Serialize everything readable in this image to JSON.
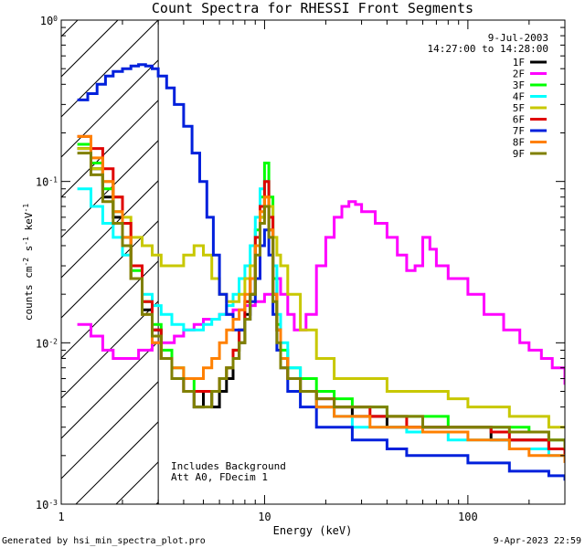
{
  "chart_data": {
    "type": "line",
    "title": "Count Spectra for RHESSI Front Segments",
    "xlabel": "Energy (keV)",
    "ylabel": "counts cm",
    "ylabel_sup1": "-2",
    "ylabel_mid": " s",
    "ylabel_sup2": "-1",
    "ylabel_end": " keV",
    "ylabel_sup3": "-1",
    "x_scale": "log",
    "y_scale": "log",
    "xlim": [
      1.0,
      300
    ],
    "ylim": [
      0.001,
      1.0
    ],
    "x_ticks": [
      {
        "v": 1,
        "label": "1"
      },
      {
        "v": 10,
        "label": "10"
      },
      {
        "v": 100,
        "label": "100"
      }
    ],
    "y_ticks": [
      {
        "v": 1,
        "base": "10",
        "exp": "0"
      },
      {
        "v": 0.1,
        "base": "10",
        "exp": "-1"
      },
      {
        "v": 0.01,
        "base": "10",
        "exp": "-2"
      },
      {
        "v": 0.001,
        "base": "10",
        "exp": "-3"
      }
    ],
    "hatch_xmax": 3.0,
    "legend_position": "top-right",
    "date_line": "9-Jul-2003",
    "time_line": "14:27:00 to 14:28:00",
    "notes": [
      "Includes Background",
      "Att A0, FDecim 1"
    ],
    "footer_left": "Generated by hsi_min_spectra_plot.pro",
    "footer_right": "9-Apr-2023 22:59",
    "series": [
      {
        "name": "1F",
        "color": "#000000",
        "x": [
          1.2,
          1.4,
          1.6,
          1.8,
          2.0,
          2.2,
          2.5,
          2.8,
          3.1,
          3.5,
          4.0,
          4.5,
          5.0,
          5.5,
          6.0,
          6.5,
          7.0,
          7.5,
          8.0,
          8.5,
          9.0,
          9.5,
          10.0,
          10.5,
          11.0,
          11.5,
          12.0,
          13,
          15,
          18,
          22,
          27,
          33,
          40,
          50,
          60,
          80,
          100,
          130,
          160,
          200,
          250,
          300
        ],
        "y": [
          0.16,
          0.12,
          0.08,
          0.06,
          0.04,
          0.025,
          0.016,
          0.012,
          0.008,
          0.006,
          0.005,
          0.004,
          0.005,
          0.004,
          0.005,
          0.006,
          0.008,
          0.01,
          0.015,
          0.02,
          0.04,
          0.06,
          0.07,
          0.05,
          0.02,
          0.012,
          0.008,
          0.006,
          0.005,
          0.004,
          0.004,
          0.0035,
          0.0035,
          0.003,
          0.003,
          0.003,
          0.003,
          0.003,
          0.0025,
          0.0025,
          0.0025,
          0.0022,
          0.002
        ]
      },
      {
        "name": "2F",
        "color": "#ff00ff",
        "x": [
          1.2,
          1.4,
          1.6,
          1.8,
          2.0,
          2.4,
          2.8,
          3.2,
          3.6,
          4.0,
          4.5,
          5.0,
          5.5,
          6.0,
          7.0,
          8.0,
          9.0,
          10.0,
          11.0,
          12.0,
          13.0,
          14.0,
          15.0,
          16.0,
          18.0,
          20.0,
          22.0,
          24.0,
          26.0,
          28.0,
          30.0,
          35.0,
          40.0,
          45.0,
          50.0,
          55.0,
          60.0,
          65.0,
          70.0,
          80.0,
          100.0,
          120.0,
          150.0,
          180.0,
          200.0,
          230.0,
          260.0,
          300.0
        ],
        "y": [
          0.013,
          0.011,
          0.009,
          0.008,
          0.008,
          0.009,
          0.01,
          0.01,
          0.011,
          0.012,
          0.013,
          0.014,
          0.014,
          0.015,
          0.016,
          0.017,
          0.018,
          0.02,
          0.025,
          0.02,
          0.015,
          0.012,
          0.012,
          0.015,
          0.03,
          0.045,
          0.06,
          0.07,
          0.075,
          0.072,
          0.065,
          0.055,
          0.045,
          0.035,
          0.028,
          0.03,
          0.045,
          0.038,
          0.03,
          0.025,
          0.02,
          0.015,
          0.012,
          0.01,
          0.009,
          0.008,
          0.007,
          0.0055
        ]
      },
      {
        "name": "3F",
        "color": "#00ff00",
        "x": [
          1.2,
          1.4,
          1.6,
          1.8,
          2.0,
          2.2,
          2.5,
          2.8,
          3.1,
          3.5,
          4.0,
          4.5,
          5.0,
          5.5,
          6.0,
          6.5,
          7.0,
          7.5,
          8.0,
          8.5,
          9.0,
          9.5,
          10.0,
          10.5,
          11.0,
          11.5,
          12.0,
          13,
          15,
          18,
          22,
          27,
          33,
          40,
          50,
          60,
          80,
          100,
          130,
          160,
          200,
          250,
          300
        ],
        "y": [
          0.17,
          0.13,
          0.09,
          0.065,
          0.045,
          0.028,
          0.018,
          0.013,
          0.009,
          0.007,
          0.006,
          0.005,
          0.005,
          0.005,
          0.006,
          0.007,
          0.009,
          0.012,
          0.018,
          0.025,
          0.05,
          0.08,
          0.13,
          0.08,
          0.025,
          0.013,
          0.009,
          0.007,
          0.006,
          0.005,
          0.0045,
          0.004,
          0.004,
          0.0035,
          0.0035,
          0.0035,
          0.003,
          0.003,
          0.003,
          0.003,
          0.0028,
          0.0025,
          0.0022
        ]
      },
      {
        "name": "4F",
        "color": "#00ffff",
        "x": [
          1.2,
          1.4,
          1.6,
          1.8,
          2.0,
          2.2,
          2.5,
          2.8,
          3.1,
          3.5,
          4.0,
          4.5,
          5.0,
          5.5,
          6.0,
          6.5,
          7.0,
          7.5,
          8.0,
          8.5,
          9.0,
          9.5,
          10.0,
          10.5,
          11.0,
          11.5,
          12.0,
          13,
          15,
          18,
          22,
          27,
          33,
          40,
          50,
          60,
          80,
          100,
          130,
          160,
          200,
          250,
          300
        ],
        "y": [
          0.09,
          0.07,
          0.055,
          0.045,
          0.035,
          0.025,
          0.02,
          0.017,
          0.015,
          0.013,
          0.012,
          0.012,
          0.013,
          0.014,
          0.015,
          0.017,
          0.02,
          0.025,
          0.03,
          0.04,
          0.06,
          0.09,
          0.1,
          0.07,
          0.03,
          0.015,
          0.01,
          0.007,
          0.005,
          0.004,
          0.0035,
          0.003,
          0.003,
          0.003,
          0.0028,
          0.0028,
          0.0025,
          0.0025,
          0.0025,
          0.0022,
          0.0022,
          0.002,
          0.002
        ]
      },
      {
        "name": "5F",
        "color": "#c8c800",
        "x": [
          1.2,
          1.4,
          1.6,
          1.8,
          2.0,
          2.2,
          2.5,
          2.8,
          3.1,
          3.5,
          4.0,
          4.5,
          5.0,
          5.5,
          6.0,
          6.5,
          7.0,
          7.5,
          8.0,
          8.5,
          9.0,
          9.5,
          10.0,
          10.5,
          11.0,
          11.5,
          12.0,
          13,
          15,
          18,
          22,
          27,
          33,
          40,
          50,
          60,
          80,
          100,
          130,
          160,
          200,
          250,
          300
        ],
        "y": [
          0.16,
          0.12,
          0.1,
          0.08,
          0.06,
          0.045,
          0.04,
          0.035,
          0.03,
          0.03,
          0.035,
          0.04,
          0.035,
          0.025,
          0.02,
          0.018,
          0.018,
          0.02,
          0.025,
          0.03,
          0.04,
          0.06,
          0.08,
          0.07,
          0.045,
          0.035,
          0.03,
          0.02,
          0.012,
          0.008,
          0.006,
          0.006,
          0.006,
          0.005,
          0.005,
          0.005,
          0.0045,
          0.004,
          0.004,
          0.0035,
          0.0035,
          0.003,
          0.003
        ]
      },
      {
        "name": "6F",
        "color": "#e00000",
        "x": [
          1.2,
          1.4,
          1.6,
          1.8,
          2.0,
          2.2,
          2.5,
          2.8,
          3.1,
          3.5,
          4.0,
          4.5,
          5.0,
          5.5,
          6.0,
          6.5,
          7.0,
          7.5,
          8.0,
          8.5,
          9.0,
          9.5,
          10.0,
          10.5,
          11.0,
          11.5,
          12.0,
          13,
          15,
          18,
          22,
          27,
          33,
          40,
          50,
          60,
          80,
          100,
          130,
          160,
          200,
          250,
          300
        ],
        "y": [
          0.19,
          0.16,
          0.12,
          0.08,
          0.055,
          0.03,
          0.018,
          0.012,
          0.008,
          0.006,
          0.005,
          0.005,
          0.005,
          0.005,
          0.006,
          0.007,
          0.009,
          0.012,
          0.018,
          0.025,
          0.045,
          0.07,
          0.1,
          0.06,
          0.02,
          0.012,
          0.008,
          0.006,
          0.005,
          0.0045,
          0.004,
          0.004,
          0.0035,
          0.0035,
          0.003,
          0.003,
          0.003,
          0.003,
          0.0028,
          0.0025,
          0.0025,
          0.0022,
          0.002
        ]
      },
      {
        "name": "7F",
        "color": "#0020dc",
        "x": [
          1.2,
          1.35,
          1.5,
          1.65,
          1.8,
          2.0,
          2.2,
          2.4,
          2.6,
          2.8,
          3.0,
          3.3,
          3.6,
          4.0,
          4.4,
          4.8,
          5.2,
          5.6,
          6.0,
          6.5,
          7.0,
          7.5,
          8.0,
          8.5,
          9.0,
          9.5,
          10.0,
          10.5,
          11.0,
          11.5,
          12.0,
          13,
          15,
          18,
          22,
          27,
          33,
          40,
          50,
          60,
          80,
          100,
          130,
          160,
          200,
          250,
          300
        ],
        "y": [
          0.32,
          0.35,
          0.4,
          0.45,
          0.48,
          0.5,
          0.52,
          0.53,
          0.52,
          0.5,
          0.45,
          0.38,
          0.3,
          0.22,
          0.15,
          0.1,
          0.06,
          0.035,
          0.02,
          0.015,
          0.012,
          0.012,
          0.014,
          0.018,
          0.025,
          0.04,
          0.05,
          0.035,
          0.015,
          0.009,
          0.007,
          0.005,
          0.004,
          0.003,
          0.003,
          0.0025,
          0.0025,
          0.0022,
          0.002,
          0.002,
          0.002,
          0.0018,
          0.0018,
          0.0016,
          0.0016,
          0.0015,
          0.0014
        ]
      },
      {
        "name": "8F",
        "color": "#ff8000",
        "x": [
          1.2,
          1.4,
          1.6,
          1.8,
          2.0,
          2.2,
          2.5,
          2.8,
          3.1,
          3.5,
          4.0,
          4.5,
          5.0,
          5.5,
          6.0,
          6.5,
          7.0,
          7.5,
          8.0,
          8.5,
          9.0,
          9.5,
          10.0,
          10.5,
          11.0,
          11.5,
          12.0,
          13,
          15,
          18,
          22,
          27,
          33,
          40,
          50,
          60,
          80,
          100,
          130,
          160,
          200,
          250,
          300
        ],
        "y": [
          0.19,
          0.14,
          0.1,
          0.065,
          0.045,
          0.025,
          0.015,
          0.01,
          0.008,
          0.007,
          0.006,
          0.006,
          0.007,
          0.008,
          0.01,
          0.012,
          0.014,
          0.016,
          0.02,
          0.025,
          0.04,
          0.065,
          0.08,
          0.05,
          0.02,
          0.012,
          0.008,
          0.006,
          0.005,
          0.004,
          0.0035,
          0.0035,
          0.003,
          0.003,
          0.003,
          0.0028,
          0.0028,
          0.0025,
          0.0025,
          0.0022,
          0.002,
          0.002,
          0.0018
        ]
      },
      {
        "name": "9F",
        "color": "#808000",
        "x": [
          1.2,
          1.4,
          1.6,
          1.8,
          2.0,
          2.2,
          2.5,
          2.8,
          3.1,
          3.5,
          4.0,
          4.5,
          5.0,
          5.5,
          6.0,
          6.5,
          7.0,
          7.5,
          8.0,
          8.5,
          9.0,
          9.5,
          10.0,
          10.5,
          11.0,
          11.5,
          12.0,
          13,
          15,
          18,
          22,
          27,
          33,
          40,
          50,
          60,
          80,
          100,
          130,
          160,
          200,
          250,
          300
        ],
        "y": [
          0.15,
          0.11,
          0.075,
          0.055,
          0.04,
          0.025,
          0.015,
          0.011,
          0.008,
          0.006,
          0.005,
          0.004,
          0.004,
          0.005,
          0.006,
          0.007,
          0.008,
          0.01,
          0.014,
          0.02,
          0.035,
          0.055,
          0.07,
          0.045,
          0.018,
          0.01,
          0.007,
          0.006,
          0.005,
          0.0045,
          0.004,
          0.004,
          0.004,
          0.0035,
          0.0035,
          0.003,
          0.003,
          0.003,
          0.003,
          0.0028,
          0.0028,
          0.0025,
          0.0022
        ]
      }
    ]
  }
}
